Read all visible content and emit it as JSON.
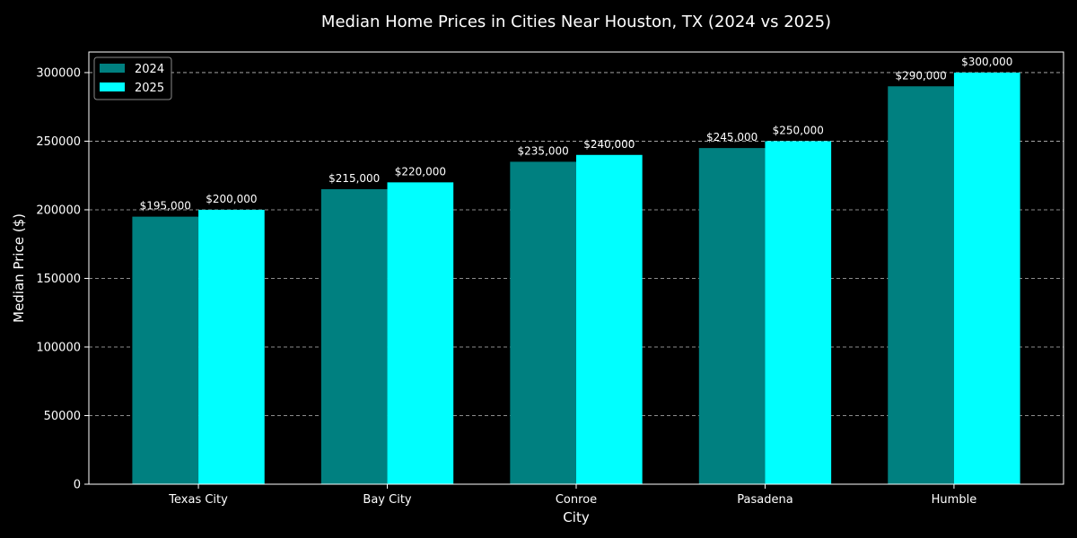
{
  "chart_data": {
    "type": "bar",
    "title": "Median Home Prices in Cities Near Houston, TX (2024 vs 2025)",
    "xlabel": "City",
    "ylabel": "Median Price ($)",
    "categories": [
      "Texas City",
      "Bay City",
      "Conroe",
      "Pasadena",
      "Humble"
    ],
    "series": [
      {
        "name": "2024",
        "color": "#008080",
        "values": [
          195000,
          215000,
          235000,
          245000,
          290000
        ],
        "labels": [
          "$195,000",
          "$215,000",
          "$235,000",
          "$245,000",
          "$290,000"
        ]
      },
      {
        "name": "2025",
        "color": "#00ffff",
        "values": [
          200000,
          220000,
          240000,
          250000,
          300000
        ],
        "labels": [
          "$200,000",
          "$220,000",
          "$240,000",
          "$250,000",
          "$300,000"
        ]
      }
    ],
    "ylim": [
      0,
      315000
    ],
    "yticks": [
      0,
      50000,
      100000,
      150000,
      200000,
      250000,
      300000
    ],
    "ytick_labels": [
      "0",
      "50000",
      "100000",
      "150000",
      "200000",
      "250000",
      "300000"
    ],
    "grid": "y-dashed",
    "legend_position": "top-left"
  }
}
